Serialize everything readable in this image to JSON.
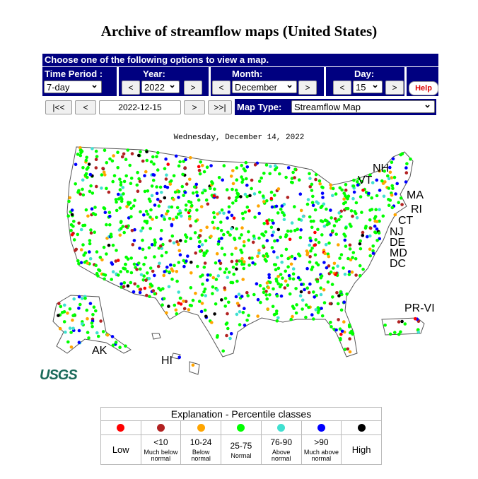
{
  "title": "Archive of streamflow maps (United States)",
  "controls": {
    "header": "Choose one of the following options to view a map.",
    "time_period": {
      "label": "Time Period :",
      "value": "7-day"
    },
    "year": {
      "label": "Year:",
      "prev": "<",
      "value": "2022",
      "next": ">"
    },
    "month": {
      "label": "Month:",
      "prev": "<",
      "value": "December",
      "next": ">"
    },
    "day": {
      "label": "Day:",
      "prev": "<",
      "value": "15",
      "next": ">"
    },
    "help": "Help",
    "nav": {
      "first": "|<<",
      "prev": "<",
      "date": "2022-12-15",
      "next": ">",
      "last": ">>|"
    },
    "map_type": {
      "label": "Map Type:",
      "value": "Streamflow Map"
    }
  },
  "map": {
    "date": "Wednesday, December 14, 2022",
    "labels": [
      "NH",
      "VT",
      "MA",
      "RI",
      "CT",
      "NJ",
      "DE",
      "MD",
      "DC",
      "PR-VI",
      "AK",
      "HI"
    ],
    "logo": "USGS"
  },
  "legend": {
    "title": "Explanation - Percentile classes",
    "classes": [
      {
        "label": "Low",
        "color": "#ff0000"
      },
      {
        "range": "<10",
        "description": "Much below normal",
        "color": "#b22222"
      },
      {
        "range": "10-24",
        "description": "Below normal",
        "color": "#ffa500"
      },
      {
        "range": "25-75",
        "description": "Normal",
        "color": "#00ff00"
      },
      {
        "range": "76-90",
        "description": "Above normal",
        "color": "#40e0d0"
      },
      {
        "range": ">90",
        "description": "Much above normal",
        "color": "#0000ff"
      },
      {
        "label": "High",
        "color": "#000000"
      }
    ]
  }
}
